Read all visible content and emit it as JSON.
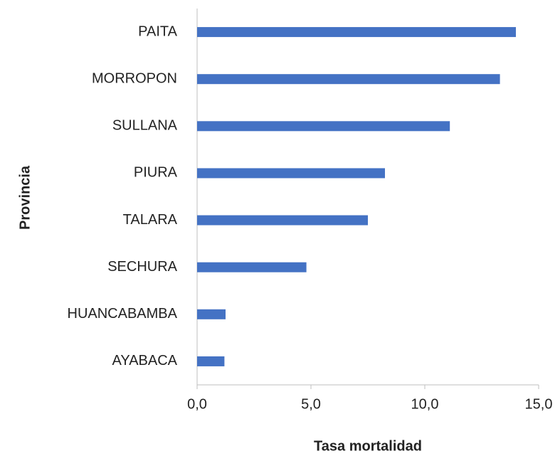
{
  "chart_data": {
    "type": "bar",
    "orientation": "horizontal",
    "x_label": "Tasa mortalidad",
    "y_label": "Provincia",
    "categories": [
      "PAITA",
      "MORROPON",
      "SULLANA",
      "PIURA",
      "TALARA",
      "SECHURA",
      "HUANCABAMBA",
      "AYABACA"
    ],
    "values": [
      14.0,
      13.3,
      11.1,
      8.25,
      7.5,
      4.8,
      1.25,
      1.2
    ],
    "color": "#4472c4",
    "xlim": [
      0,
      15
    ],
    "xticks": [
      {
        "value": 0,
        "label": "0,0"
      },
      {
        "value": 5,
        "label": "5,0"
      },
      {
        "value": 10,
        "label": "10,0"
      },
      {
        "value": 15,
        "label": "15,0"
      }
    ],
    "grid": false
  }
}
